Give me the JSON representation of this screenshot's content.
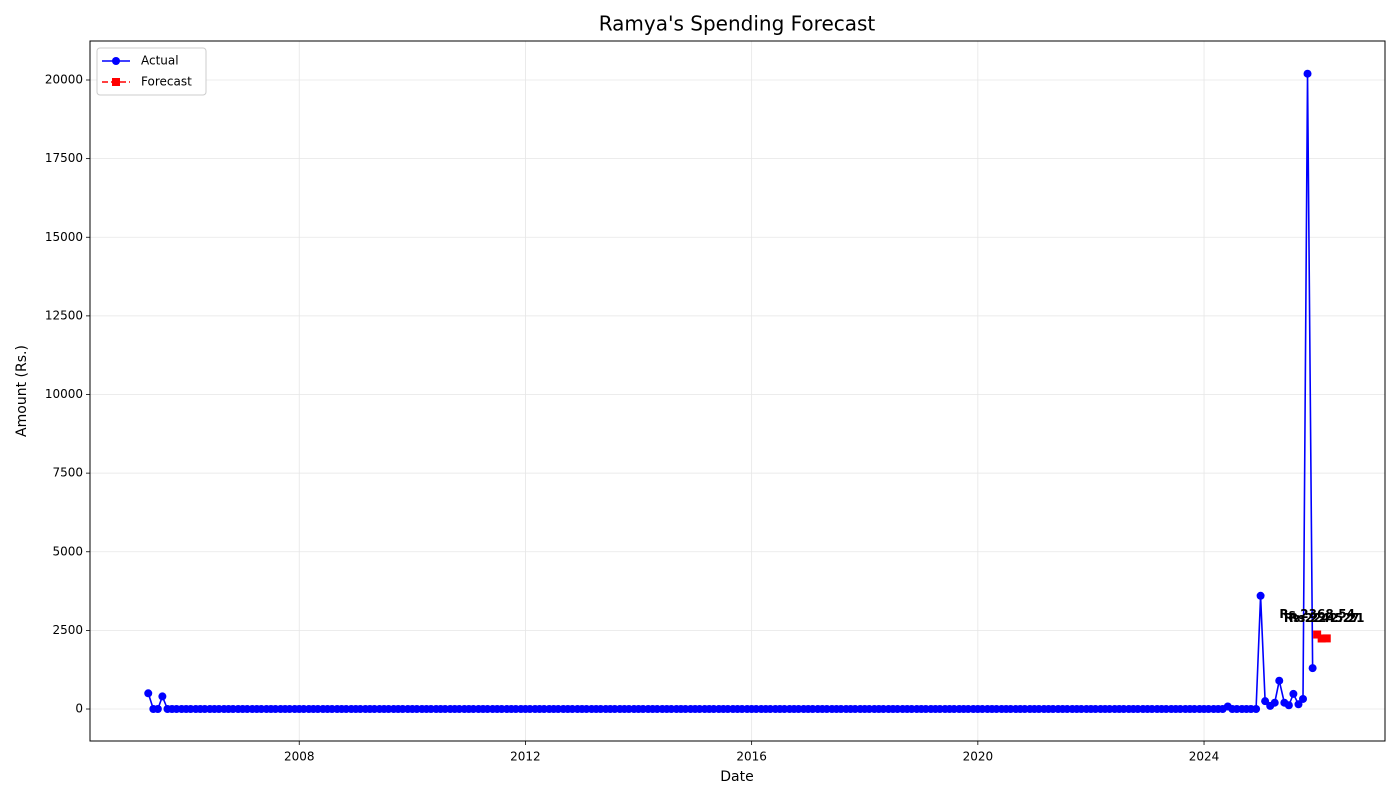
{
  "chart_data": {
    "type": "line",
    "title": "Ramya's Spending Forecast",
    "x_label": "Date",
    "y_label": "Amount (Rs.)",
    "xlim": [
      2004.3,
      2027.2
    ],
    "xticks": [
      2008,
      2012,
      2016,
      2020,
      2024
    ],
    "ylim": [
      -1017,
      21240
    ],
    "yticks": [
      0,
      2500,
      5000,
      7500,
      10000,
      12500,
      15000,
      17500,
      20000
    ],
    "grid": true,
    "legend": "upper left",
    "series": [
      {
        "name": "Actual",
        "color": "#0000ff",
        "marker": "circle",
        "dash": false,
        "x": [
          2005.33,
          2005.42,
          2005.5,
          2005.58,
          2005.67,
          2005.75,
          2005.83,
          2005.92,
          2006,
          2006.08,
          2006.17,
          2006.25,
          2006.33,
          2006.42,
          2006.5,
          2006.58,
          2006.67,
          2006.75,
          2006.83,
          2006.92,
          2007,
          2007.08,
          2007.17,
          2007.25,
          2007.33,
          2007.42,
          2007.5,
          2007.58,
          2007.67,
          2007.75,
          2007.83,
          2007.92,
          2008,
          2008.08,
          2008.17,
          2008.25,
          2008.33,
          2008.42,
          2008.5,
          2008.58,
          2008.67,
          2008.75,
          2008.83,
          2008.92,
          2009,
          2009.08,
          2009.17,
          2009.25,
          2009.33,
          2009.42,
          2009.5,
          2009.58,
          2009.67,
          2009.75,
          2009.83,
          2009.92,
          2010,
          2010.08,
          2010.17,
          2010.25,
          2010.33,
          2010.42,
          2010.5,
          2010.58,
          2010.67,
          2010.75,
          2010.83,
          2010.92,
          2011,
          2011.08,
          2011.17,
          2011.25,
          2011.33,
          2011.42,
          2011.5,
          2011.58,
          2011.67,
          2011.75,
          2011.83,
          2011.92,
          2012,
          2012.08,
          2012.17,
          2012.25,
          2012.33,
          2012.42,
          2012.5,
          2012.58,
          2012.67,
          2012.75,
          2012.83,
          2012.92,
          2013,
          2013.08,
          2013.17,
          2013.25,
          2013.33,
          2013.42,
          2013.5,
          2013.58,
          2013.67,
          2013.75,
          2013.83,
          2013.92,
          2014,
          2014.08,
          2014.17,
          2014.25,
          2014.33,
          2014.42,
          2014.5,
          2014.58,
          2014.67,
          2014.75,
          2014.83,
          2014.92,
          2015,
          2015.08,
          2015.17,
          2015.25,
          2015.33,
          2015.42,
          2015.5,
          2015.58,
          2015.67,
          2015.75,
          2015.83,
          2015.92,
          2016,
          2016.08,
          2016.17,
          2016.25,
          2016.33,
          2016.42,
          2016.5,
          2016.58,
          2016.67,
          2016.75,
          2016.83,
          2016.92,
          2017,
          2017.08,
          2017.17,
          2017.25,
          2017.33,
          2017.42,
          2017.5,
          2017.58,
          2017.67,
          2017.75,
          2017.83,
          2017.92,
          2018,
          2018.08,
          2018.17,
          2018.25,
          2018.33,
          2018.42,
          2018.5,
          2018.58,
          2018.67,
          2018.75,
          2018.83,
          2018.92,
          2019,
          2019.08,
          2019.17,
          2019.25,
          2019.33,
          2019.42,
          2019.5,
          2019.58,
          2019.67,
          2019.75,
          2019.83,
          2019.92,
          2020,
          2020.08,
          2020.17,
          2020.25,
          2020.33,
          2020.42,
          2020.5,
          2020.58,
          2020.67,
          2020.75,
          2020.83,
          2020.92,
          2021,
          2021.08,
          2021.17,
          2021.25,
          2021.33,
          2021.42,
          2021.5,
          2021.58,
          2021.67,
          2021.75,
          2021.83,
          2021.92,
          2022,
          2022.08,
          2022.17,
          2022.25,
          2022.33,
          2022.42,
          2022.5,
          2022.58,
          2022.67,
          2022.75,
          2022.83,
          2022.92,
          2023,
          2023.08,
          2023.17,
          2023.25,
          2023.33,
          2023.42,
          2023.5,
          2023.58,
          2023.67,
          2023.75,
          2023.83,
          2023.92,
          2024,
          2024.08,
          2024.17,
          2024.25,
          2024.33,
          2024.42,
          2024.5,
          2024.58,
          2024.67,
          2024.75,
          2024.83,
          2024.92,
          2025,
          2025.08,
          2025.17,
          2025.25,
          2025.33,
          2025.42,
          2025.5,
          2025.58,
          2025.67,
          2025.75,
          2025.83,
          2025.92
        ],
        "values": [
          500,
          0,
          0,
          400,
          0,
          0,
          0,
          0,
          0,
          0,
          0,
          0,
          0,
          0,
          0,
          0,
          0,
          0,
          0,
          0,
          0,
          0,
          0,
          0,
          0,
          0,
          0,
          0,
          0,
          0,
          0,
          0,
          0,
          0,
          0,
          0,
          0,
          0,
          0,
          0,
          0,
          0,
          0,
          0,
          0,
          0,
          0,
          0,
          0,
          0,
          0,
          0,
          0,
          0,
          0,
          0,
          0,
          0,
          0,
          0,
          0,
          0,
          0,
          0,
          0,
          0,
          0,
          0,
          0,
          0,
          0,
          0,
          0,
          0,
          0,
          0,
          0,
          0,
          0,
          0,
          0,
          0,
          0,
          0,
          0,
          0,
          0,
          0,
          0,
          0,
          0,
          0,
          0,
          0,
          0,
          0,
          0,
          0,
          0,
          0,
          0,
          0,
          0,
          0,
          0,
          0,
          0,
          0,
          0,
          0,
          0,
          0,
          0,
          0,
          0,
          0,
          0,
          0,
          0,
          0,
          0,
          0,
          0,
          0,
          0,
          0,
          0,
          0,
          0,
          0,
          0,
          0,
          0,
          0,
          0,
          0,
          0,
          0,
          0,
          0,
          0,
          0,
          0,
          0,
          0,
          0,
          0,
          0,
          0,
          0,
          0,
          0,
          0,
          0,
          0,
          0,
          0,
          0,
          0,
          0,
          0,
          0,
          0,
          0,
          0,
          0,
          0,
          0,
          0,
          0,
          0,
          0,
          0,
          0,
          0,
          0,
          0,
          0,
          0,
          0,
          0,
          0,
          0,
          0,
          0,
          0,
          0,
          0,
          0,
          0,
          0,
          0,
          0,
          0,
          0,
          0,
          0,
          0,
          0,
          0,
          0,
          0,
          0,
          0,
          0,
          0,
          0,
          0,
          0,
          0,
          0,
          0,
          0,
          0,
          0,
          0,
          0,
          0,
          0,
          0,
          0,
          0,
          0,
          0,
          0,
          0,
          0,
          0,
          0,
          80,
          0,
          0,
          0,
          0,
          0,
          0,
          3600,
          250,
          100,
          200,
          900,
          200,
          120,
          480,
          150,
          320,
          20200,
          1300
        ]
      },
      {
        "name": "Forecast",
        "color": "#ff0000",
        "marker": "square",
        "dash": true,
        "x": [
          2026,
          2026.08,
          2026.17
        ],
        "values": [
          2368.54,
          2242.27,
          2245.21
        ],
        "value_labels": [
          "Rs.2368.54",
          "Rs.2242.27",
          "Rs.2245.21"
        ]
      }
    ]
  }
}
